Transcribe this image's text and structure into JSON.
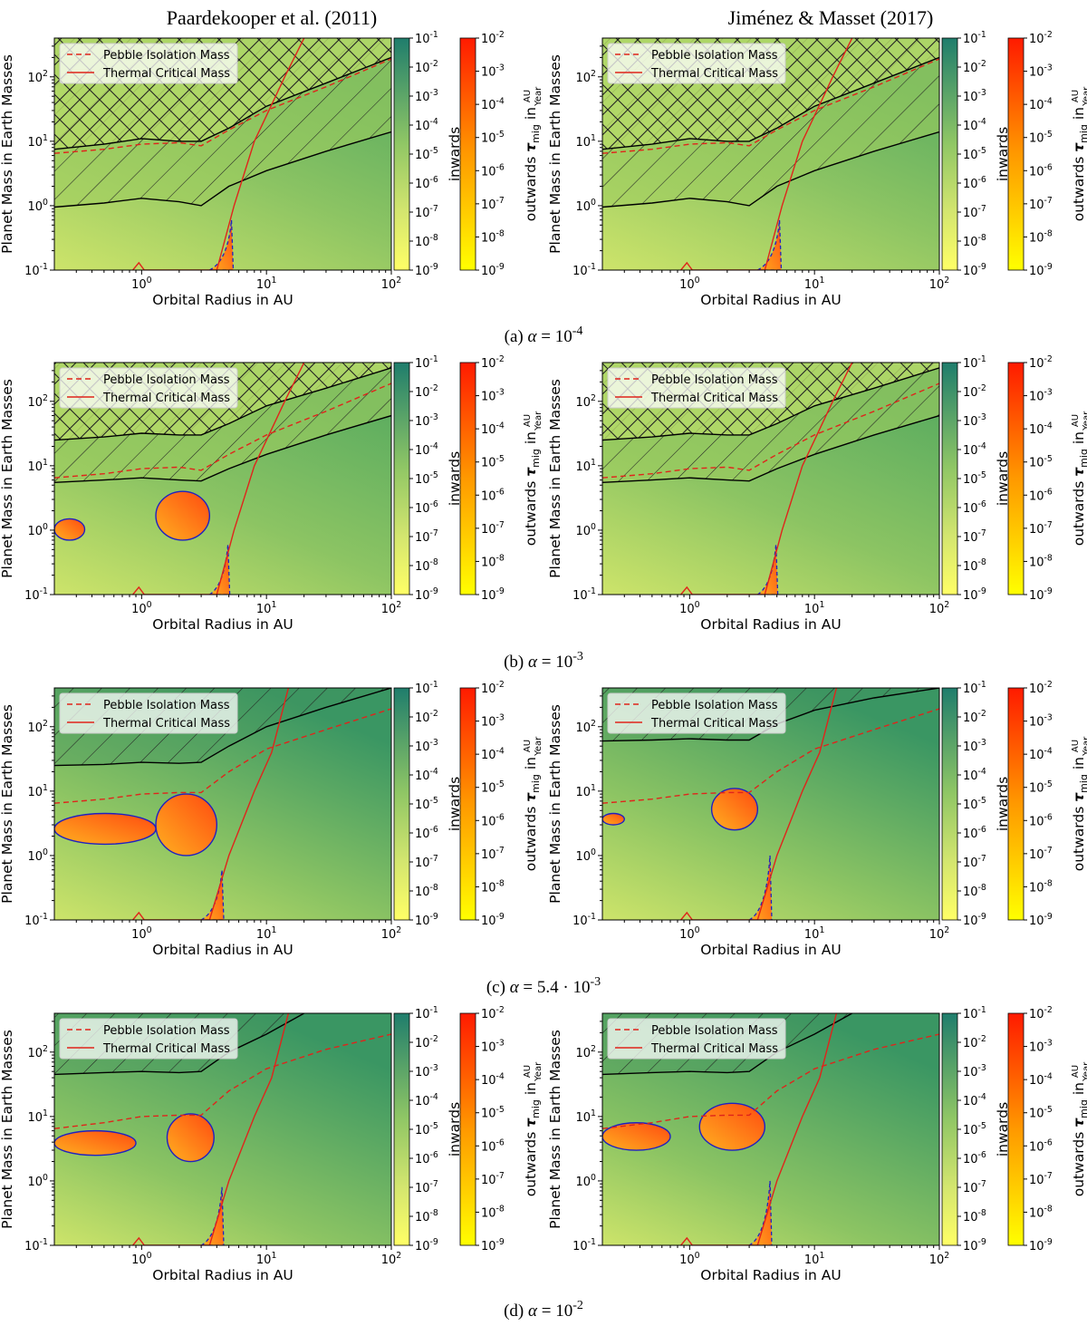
{
  "column_titles": [
    "Paardekooper et al. (2011)",
    "Jiménez & Masset (2017)"
  ],
  "legend": {
    "dashed": "Pebble Isolation Mass",
    "solid": "Thermal Critical Mass"
  },
  "axes": {
    "xlabel": "Orbital Radius in AU",
    "ylabel": "Planet Mass in Earth Masses",
    "xticks": [
      "10^0",
      "10^1",
      "10^2"
    ],
    "yticks": [
      "10^-1",
      "10^0",
      "10^1",
      "10^2"
    ]
  },
  "colorbars": {
    "inwards": {
      "label": "inwards",
      "ticks": [
        "10^-1",
        "10^-2",
        "10^-3",
        "10^-4",
        "10^-5",
        "10^-6",
        "10^-7",
        "10^-8",
        "10^-9"
      ]
    },
    "outwards": {
      "label": "outwards τ_mig in AU/Year",
      "label_prefix": "outwards",
      "label_tau": "τ",
      "label_sub": "mig",
      "label_in": "in",
      "unit_num": "AU",
      "unit_den": "Year",
      "ticks": [
        "10^-2",
        "10^-3",
        "10^-4",
        "10^-5",
        "10^-6",
        "10^-7",
        "10^-8",
        "10^-9"
      ]
    }
  },
  "captions": [
    {
      "letter": "(a)",
      "alpha": "α",
      "value": "10^-4"
    },
    {
      "letter": "(b)",
      "alpha": "α",
      "value": "10^-3"
    },
    {
      "letter": "(c)",
      "alpha": "α",
      "value": "5.4 · 10^-3"
    },
    {
      "letter": "(d)",
      "alpha": "α",
      "value": "10^-2"
    }
  ],
  "colors": {
    "inward_low": "#d4e66f",
    "inward_high": "#2e8b6c",
    "outward_low": "#ffff33",
    "outward_high": "#ff1a00",
    "pebble": "#e0241b",
    "thermal": "#e0241b",
    "zero_contour": "#1f1fbf",
    "gap_line": "#000000"
  },
  "chart_data": [
    {
      "type": "heatmap",
      "panel": "a-left",
      "model": "Paardekooper et al. (2011)",
      "alpha": "1e-4",
      "xlim": [
        0.2,
        100
      ],
      "ylim": [
        0.1,
        400
      ],
      "xscale": "log",
      "yscale": "log",
      "hatch_cross_above": [
        [
          0.2,
          7.5
        ],
        [
          0.5,
          9
        ],
        [
          1,
          11
        ],
        [
          2,
          10
        ],
        [
          3,
          10
        ],
        [
          5,
          16
        ],
        [
          10,
          35
        ],
        [
          30,
          80
        ],
        [
          100,
          200
        ]
      ],
      "hatch_diag_above": [
        [
          0.2,
          0.95
        ],
        [
          0.5,
          1.1
        ],
        [
          1,
          1.3
        ],
        [
          2,
          1.15
        ],
        [
          3,
          1
        ],
        [
          5,
          2
        ],
        [
          10,
          3.5
        ],
        [
          30,
          7
        ],
        [
          100,
          14
        ]
      ],
      "pebble_isolation": [
        [
          0.2,
          6.5
        ],
        [
          0.5,
          7.5
        ],
        [
          1,
          9
        ],
        [
          2,
          9.5
        ],
        [
          3,
          8.5
        ],
        [
          5,
          15
        ],
        [
          10,
          30
        ],
        [
          30,
          70
        ],
        [
          100,
          190
        ]
      ],
      "thermal_critical": [
        [
          0.85,
          0.1
        ],
        [
          0.95,
          0.13
        ],
        [
          1.05,
          0.1
        ],
        [
          4,
          0.1
        ],
        [
          5.5,
          1
        ],
        [
          8,
          10
        ],
        [
          10,
          25
        ],
        [
          14,
          100
        ],
        [
          20,
          400
        ]
      ],
      "outward_regions": [
        {
          "near_x": [
            3.5,
            6
          ],
          "y": [
            0.1,
            0.6
          ]
        }
      ]
    },
    {
      "type": "heatmap",
      "panel": "a-right",
      "model": "Jiménez & Masset (2017)",
      "alpha": "1e-4",
      "xlim": [
        0.2,
        100
      ],
      "ylim": [
        0.1,
        400
      ],
      "xscale": "log",
      "yscale": "log",
      "hatch_cross_above": [
        [
          0.2,
          7.5
        ],
        [
          0.5,
          9
        ],
        [
          1,
          11
        ],
        [
          2,
          10
        ],
        [
          3,
          10
        ],
        [
          5,
          16
        ],
        [
          10,
          35
        ],
        [
          30,
          80
        ],
        [
          100,
          200
        ]
      ],
      "hatch_diag_above": [
        [
          0.2,
          0.95
        ],
        [
          0.5,
          1.1
        ],
        [
          1,
          1.3
        ],
        [
          2,
          1.15
        ],
        [
          3,
          1
        ],
        [
          5,
          2
        ],
        [
          10,
          3.5
        ],
        [
          30,
          7
        ],
        [
          100,
          14
        ]
      ],
      "pebble_isolation": [
        [
          0.2,
          6.5
        ],
        [
          0.5,
          7.5
        ],
        [
          1,
          9
        ],
        [
          2,
          9.5
        ],
        [
          3,
          8.5
        ],
        [
          5,
          15
        ],
        [
          10,
          30
        ],
        [
          30,
          70
        ],
        [
          100,
          190
        ]
      ],
      "thermal_critical": [
        [
          0.85,
          0.1
        ],
        [
          0.95,
          0.13
        ],
        [
          1.05,
          0.1
        ],
        [
          4,
          0.1
        ],
        [
          5.5,
          1
        ],
        [
          8,
          10
        ],
        [
          10,
          25
        ],
        [
          14,
          100
        ],
        [
          20,
          400
        ]
      ],
      "outward_regions": [
        {
          "near_x": [
            3.5,
            6
          ],
          "y": [
            0.1,
            0.6
          ]
        }
      ]
    },
    {
      "type": "heatmap",
      "panel": "b-left",
      "model": "Paardekooper et al. (2011)",
      "alpha": "1e-3",
      "xlim": [
        0.2,
        100
      ],
      "ylim": [
        0.1,
        400
      ],
      "xscale": "log",
      "yscale": "log",
      "hatch_cross_above": [
        [
          0.2,
          25
        ],
        [
          0.5,
          28
        ],
        [
          1,
          32
        ],
        [
          2,
          30
        ],
        [
          3,
          30
        ],
        [
          5,
          45
        ],
        [
          10,
          85
        ],
        [
          30,
          160
        ],
        [
          100,
          330
        ]
      ],
      "hatch_diag_above": [
        [
          0.2,
          5.5
        ],
        [
          0.5,
          6
        ],
        [
          1,
          6.5
        ],
        [
          2,
          6
        ],
        [
          3,
          5.8
        ],
        [
          5,
          9
        ],
        [
          10,
          15
        ],
        [
          30,
          30
        ],
        [
          100,
          60
        ]
      ],
      "pebble_isolation": [
        [
          0.2,
          6.5
        ],
        [
          0.5,
          7.5
        ],
        [
          1,
          9
        ],
        [
          2,
          9.5
        ],
        [
          3,
          8.5
        ],
        [
          5,
          15
        ],
        [
          10,
          30
        ],
        [
          30,
          70
        ],
        [
          100,
          190
        ]
      ],
      "thermal_critical": [
        [
          0.85,
          0.1
        ],
        [
          0.95,
          0.13
        ],
        [
          1.05,
          0.1
        ],
        [
          4,
          0.1
        ],
        [
          5.5,
          1
        ],
        [
          8,
          10
        ],
        [
          10,
          25
        ],
        [
          14,
          100
        ],
        [
          20,
          400
        ]
      ],
      "outward_regions": [
        {
          "near_x": [
            0.2,
            0.35
          ],
          "y": [
            0.7,
            1.5
          ]
        },
        {
          "near_x": [
            1.3,
            3.5
          ],
          "y": [
            0.7,
            4
          ]
        },
        {
          "near_x": [
            3.5,
            5.5
          ],
          "y": [
            0.1,
            0.6
          ]
        }
      ]
    },
    {
      "type": "heatmap",
      "panel": "b-right",
      "model": "Jiménez & Masset (2017)",
      "alpha": "1e-3",
      "xlim": [
        0.2,
        100
      ],
      "ylim": [
        0.1,
        400
      ],
      "xscale": "log",
      "yscale": "log",
      "hatch_cross_above": [
        [
          0.2,
          25
        ],
        [
          0.5,
          28
        ],
        [
          1,
          32
        ],
        [
          2,
          30
        ],
        [
          3,
          30
        ],
        [
          5,
          45
        ],
        [
          10,
          85
        ],
        [
          30,
          160
        ],
        [
          100,
          330
        ]
      ],
      "hatch_diag_above": [
        [
          0.2,
          5.5
        ],
        [
          0.5,
          6
        ],
        [
          1,
          6.5
        ],
        [
          2,
          6
        ],
        [
          3,
          5.8
        ],
        [
          5,
          9
        ],
        [
          10,
          15
        ],
        [
          30,
          30
        ],
        [
          100,
          60
        ]
      ],
      "pebble_isolation": [
        [
          0.2,
          6.5
        ],
        [
          0.5,
          7.5
        ],
        [
          1,
          9
        ],
        [
          2,
          9.5
        ],
        [
          3,
          8.5
        ],
        [
          5,
          15
        ],
        [
          10,
          30
        ],
        [
          30,
          70
        ],
        [
          100,
          190
        ]
      ],
      "thermal_critical": [
        [
          0.85,
          0.1
        ],
        [
          0.95,
          0.13
        ],
        [
          1.05,
          0.1
        ],
        [
          4,
          0.1
        ],
        [
          5.5,
          1
        ],
        [
          8,
          10
        ],
        [
          10,
          25
        ],
        [
          14,
          100
        ],
        [
          20,
          400
        ]
      ],
      "outward_regions": [
        {
          "near_x": [
            3.5,
            5.5
          ],
          "y": [
            0.1,
            0.6
          ]
        }
      ]
    },
    {
      "type": "heatmap",
      "panel": "c-left",
      "model": "Paardekooper et al. (2011)",
      "alpha": "5.4e-3",
      "xlim": [
        0.2,
        100
      ],
      "ylim": [
        0.1,
        400
      ],
      "xscale": "log",
      "yscale": "log",
      "hatch_diag_above": [
        [
          0.2,
          25
        ],
        [
          0.5,
          26
        ],
        [
          1,
          28
        ],
        [
          2,
          27
        ],
        [
          3,
          28
        ],
        [
          5,
          50
        ],
        [
          10,
          100
        ],
        [
          30,
          200
        ],
        [
          100,
          400
        ]
      ],
      "pebble_isolation": [
        [
          0.2,
          6.5
        ],
        [
          0.5,
          7.5
        ],
        [
          1,
          9
        ],
        [
          2,
          9.5
        ],
        [
          3,
          9.5
        ],
        [
          5,
          20
        ],
        [
          10,
          45
        ],
        [
          30,
          90
        ],
        [
          100,
          190
        ]
      ],
      "thermal_critical": [
        [
          0.85,
          0.1
        ],
        [
          0.95,
          0.13
        ],
        [
          1.05,
          0.1
        ],
        [
          3.5,
          0.1
        ],
        [
          5,
          1
        ],
        [
          8,
          10
        ],
        [
          11,
          40
        ],
        [
          15,
          400
        ]
      ],
      "outward_regions": [
        {
          "near_x": [
            0.2,
            1.3
          ],
          "y": [
            1.5,
            4.5
          ]
        },
        {
          "near_x": [
            1.3,
            4
          ],
          "y": [
            1,
            9
          ]
        },
        {
          "near_x": [
            3,
            5
          ],
          "y": [
            0.1,
            0.6
          ]
        }
      ]
    },
    {
      "type": "heatmap",
      "panel": "c-right",
      "model": "Jiménez & Masset (2017)",
      "alpha": "5.4e-3",
      "xlim": [
        0.2,
        100
      ],
      "ylim": [
        0.1,
        400
      ],
      "xscale": "log",
      "yscale": "log",
      "hatch_diag_above": [
        [
          0.2,
          60
        ],
        [
          0.5,
          62
        ],
        [
          1,
          65
        ],
        [
          2,
          62
        ],
        [
          3,
          62
        ],
        [
          5,
          110
        ],
        [
          10,
          180
        ],
        [
          30,
          280
        ],
        [
          100,
          400
        ]
      ],
      "pebble_isolation": [
        [
          0.2,
          6.5
        ],
        [
          0.5,
          7.5
        ],
        [
          1,
          9
        ],
        [
          2,
          9.5
        ],
        [
          3,
          9.5
        ],
        [
          5,
          20
        ],
        [
          10,
          45
        ],
        [
          30,
          90
        ],
        [
          100,
          190
        ]
      ],
      "thermal_critical": [
        [
          0.85,
          0.1
        ],
        [
          0.95,
          0.13
        ],
        [
          1.05,
          0.1
        ],
        [
          3.5,
          0.1
        ],
        [
          5,
          1
        ],
        [
          8,
          10
        ],
        [
          11,
          40
        ],
        [
          15,
          400
        ]
      ],
      "outward_regions": [
        {
          "near_x": [
            0.2,
            0.3
          ],
          "y": [
            3,
            4.5
          ]
        },
        {
          "near_x": [
            1.5,
            3.5
          ],
          "y": [
            2.5,
            11
          ]
        },
        {
          "near_x": [
            3,
            5
          ],
          "y": [
            0.1,
            1
          ]
        }
      ]
    },
    {
      "type": "heatmap",
      "panel": "d-left",
      "model": "Paardekooper et al. (2011)",
      "alpha": "1e-2",
      "xlim": [
        0.2,
        100
      ],
      "ylim": [
        0.1,
        400
      ],
      "xscale": "log",
      "yscale": "log",
      "hatch_diag_above": [
        [
          0.2,
          45
        ],
        [
          0.5,
          48
        ],
        [
          1,
          50
        ],
        [
          2,
          48
        ],
        [
          3,
          50
        ],
        [
          5,
          100
        ],
        [
          10,
          190
        ],
        [
          20,
          400
        ]
      ],
      "pebble_isolation": [
        [
          0.2,
          6.5
        ],
        [
          0.5,
          8
        ],
        [
          1,
          10
        ],
        [
          2,
          10.5
        ],
        [
          3,
          10.5
        ],
        [
          5,
          25
        ],
        [
          10,
          55
        ],
        [
          30,
          110
        ],
        [
          100,
          190
        ]
      ],
      "thermal_critical": [
        [
          0.85,
          0.1
        ],
        [
          0.95,
          0.13
        ],
        [
          1.05,
          0.1
        ],
        [
          3.5,
          0.1
        ],
        [
          5,
          1
        ],
        [
          8,
          10
        ],
        [
          11,
          40
        ],
        [
          15,
          400
        ]
      ],
      "outward_regions": [
        {
          "near_x": [
            0.2,
            0.9
          ],
          "y": [
            2.5,
            6
          ]
        },
        {
          "near_x": [
            1.6,
            3.8
          ],
          "y": [
            2,
            11
          ]
        },
        {
          "near_x": [
            3,
            5
          ],
          "y": [
            0.1,
            0.8
          ]
        }
      ]
    },
    {
      "type": "heatmap",
      "panel": "d-right",
      "model": "Jiménez & Masset (2017)",
      "alpha": "1e-2",
      "xlim": [
        0.2,
        100
      ],
      "ylim": [
        0.1,
        400
      ],
      "xscale": "log",
      "yscale": "log",
      "hatch_diag_above": [
        [
          0.2,
          45
        ],
        [
          0.5,
          48
        ],
        [
          1,
          50
        ],
        [
          2,
          48
        ],
        [
          3,
          50
        ],
        [
          5,
          100
        ],
        [
          10,
          190
        ],
        [
          20,
          400
        ]
      ],
      "pebble_isolation": [
        [
          0.2,
          6.5
        ],
        [
          0.5,
          8
        ],
        [
          1,
          10
        ],
        [
          2,
          10.5
        ],
        [
          3,
          10.5
        ],
        [
          5,
          25
        ],
        [
          10,
          55
        ],
        [
          30,
          110
        ],
        [
          100,
          190
        ]
      ],
      "thermal_critical": [
        [
          0.85,
          0.1
        ],
        [
          0.95,
          0.13
        ],
        [
          1.05,
          0.1
        ],
        [
          3.5,
          0.1
        ],
        [
          5,
          1
        ],
        [
          8,
          10
        ],
        [
          11,
          40
        ],
        [
          15,
          400
        ]
      ],
      "outward_regions": [
        {
          "near_x": [
            0.2,
            0.7
          ],
          "y": [
            3,
            8
          ]
        },
        {
          "near_x": [
            1.2,
            4
          ],
          "y": [
            3,
            16
          ]
        },
        {
          "near_x": [
            3,
            5
          ],
          "y": [
            0.1,
            1
          ]
        }
      ]
    }
  ]
}
